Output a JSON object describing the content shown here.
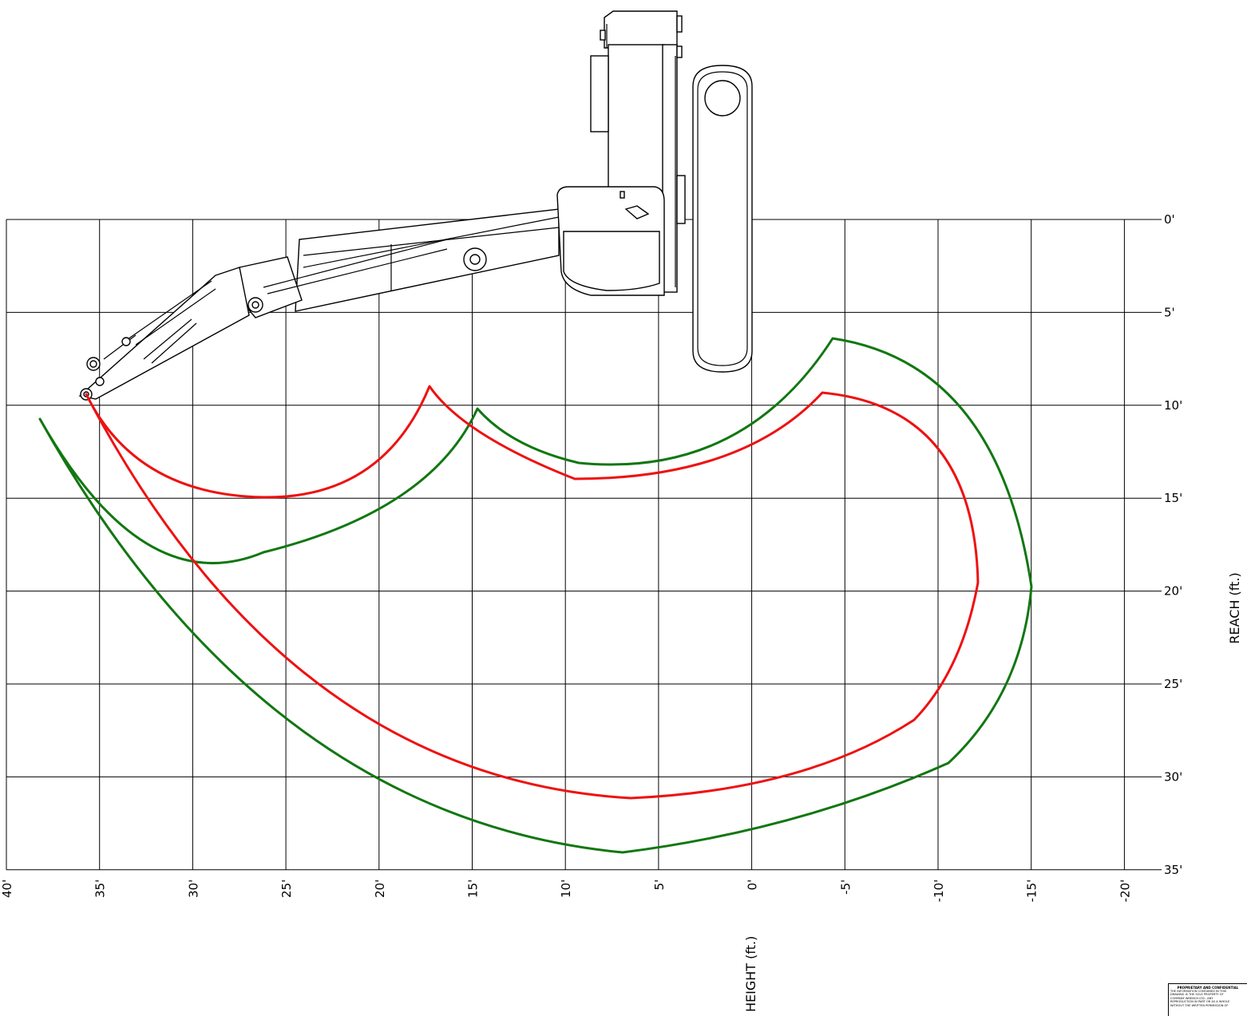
{
  "axes": {
    "x_title": "HEIGHT (ft.)",
    "y_title": "REACH (ft.)",
    "x_ticks": [
      "40'",
      "35'",
      "30'",
      "25'",
      "20'",
      "15'",
      "10'",
      "5'",
      "0'",
      "-5'",
      "-10'",
      "-15'",
      "-20'"
    ],
    "y_ticks": [
      "0'",
      "5'",
      "10'",
      "15'",
      "20'",
      "25'",
      "30'",
      "35'"
    ]
  },
  "colors": {
    "inner_envelope": "#ee1111",
    "outer_envelope": "#117711",
    "grid": "#000000"
  },
  "notice": {
    "title": "PROPRIETARY AND CONFIDENTIAL",
    "lines": [
      "THE INFORMATION CONTAINED IN THIS",
      "DRAWING IS THE SOLE PROPERTY OF",
      "COMPANY WRENCH LTD.. ANY",
      "REPRODUCTION IN PART OR AS A WHOLE",
      "WITHOUT THE WRITTEN PERMISSION OF"
    ]
  }
}
